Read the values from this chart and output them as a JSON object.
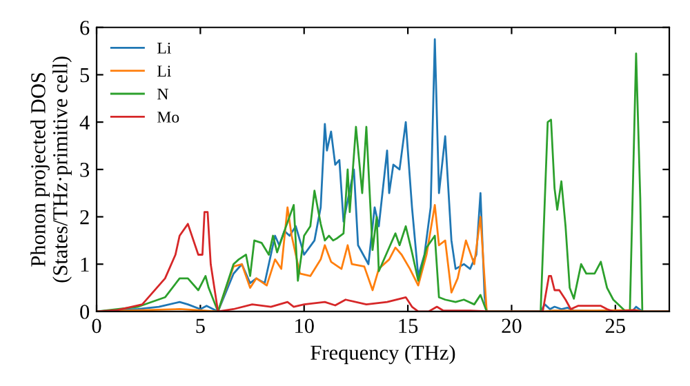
{
  "chart_data": {
    "type": "line",
    "xlabel": "Frequency (THz)",
    "ylabel": "Phonon projected DOS\n(States/THz·primitive cell)",
    "xlim": [
      0,
      27.6
    ],
    "ylim": [
      0,
      6
    ],
    "xticks": [
      0,
      5,
      10,
      15,
      20,
      25
    ],
    "yticks": [
      0,
      1,
      2,
      3,
      4,
      5,
      6
    ],
    "grid": false,
    "legend": "top left",
    "marker": "none",
    "line_style": "solid",
    "series": [
      {
        "name": "Li",
        "color": "#1f77b4",
        "x": [
          0,
          2,
          3,
          4.0,
          4.4,
          5.0,
          5.3,
          5.85,
          6.6,
          7.0,
          7.4,
          7.7,
          8.1,
          8.3,
          8.6,
          8.8,
          9.05,
          9.3,
          9.6,
          10.0,
          10.5,
          10.8,
          11.0,
          11.1,
          11.3,
          11.5,
          11.7,
          11.9,
          12.4,
          12.6,
          13.1,
          13.4,
          13.6,
          14.0,
          14.1,
          14.3,
          14.6,
          14.9,
          15.2,
          15.5,
          15.8,
          16.1,
          16.3,
          16.5,
          16.8,
          17.1,
          17.3,
          17.7,
          18.0,
          18.3,
          18.5,
          18.7,
          18.8,
          21.4,
          21.6,
          21.85,
          22.07,
          22.4,
          22.7,
          23.0,
          24.9,
          25.8,
          26.0,
          26.3,
          27.6
        ],
        "values": [
          0,
          0.05,
          0.1,
          0.2,
          0.15,
          0.05,
          0.12,
          0,
          0.8,
          1.0,
          0.6,
          0.7,
          0.6,
          1.0,
          1.6,
          1.4,
          1.7,
          1.6,
          1.8,
          1.2,
          1.5,
          2.2,
          3.96,
          3.4,
          3.8,
          3.1,
          3.2,
          1.9,
          3.0,
          1.4,
          1.0,
          2.2,
          1.8,
          3.4,
          2.5,
          3.1,
          3.0,
          4.0,
          2.2,
          0.75,
          1.2,
          2.2,
          5.75,
          2.5,
          3.7,
          1.5,
          0.9,
          1.0,
          0.9,
          1.2,
          2.5,
          0.3,
          0,
          0,
          0.15,
          0.05,
          0.1,
          0.05,
          0.08,
          0.02,
          0,
          0,
          0.1,
          0,
          0
        ]
      },
      {
        "name": "Li",
        "color": "#ff7f0e",
        "x": [
          0,
          4.0,
          5.85,
          6.6,
          7.0,
          7.4,
          7.7,
          8.2,
          8.6,
          8.9,
          9.2,
          9.4,
          9.8,
          10.3,
          10.8,
          11.0,
          11.3,
          11.8,
          12.1,
          12.3,
          12.9,
          13.3,
          13.6,
          14.1,
          14.4,
          14.7,
          15.1,
          15.5,
          15.9,
          16.3,
          16.5,
          16.8,
          17.1,
          17.4,
          17.8,
          18.2,
          18.5,
          18.8,
          21.5,
          22.0,
          24.0,
          26.0,
          26.3,
          27.6
        ],
        "values": [
          0,
          0.05,
          0,
          0.95,
          1.0,
          0.5,
          0.7,
          0.55,
          1.1,
          0.9,
          2.2,
          1.6,
          0.8,
          0.75,
          1.1,
          1.4,
          1.05,
          0.9,
          1.4,
          1.0,
          0.95,
          0.45,
          0.9,
          1.1,
          1.35,
          1.2,
          0.9,
          0.55,
          1.2,
          2.25,
          1.4,
          1.5,
          0.4,
          0.7,
          1.5,
          1.0,
          2.0,
          0,
          0,
          0.02,
          0.02,
          0.03,
          0,
          0
        ]
      },
      {
        "name": "N",
        "color": "#2ca02c",
        "x": [
          0,
          2,
          3.3,
          4.0,
          4.4,
          4.9,
          5.25,
          5.4,
          5.85,
          6.6,
          6.85,
          7.2,
          7.4,
          7.6,
          7.95,
          8.3,
          8.5,
          8.7,
          9.05,
          9.5,
          9.7,
          10.0,
          10.3,
          10.5,
          10.8,
          11.0,
          11.2,
          11.4,
          11.6,
          11.9,
          12.1,
          12.2,
          12.5,
          12.8,
          13.0,
          13.3,
          13.5,
          13.6,
          14.0,
          14.4,
          14.6,
          14.9,
          15.2,
          15.5,
          15.9,
          16.3,
          16.5,
          16.8,
          17.3,
          17.7,
          18.2,
          18.5,
          18.8,
          21.4,
          21.74,
          21.9,
          22.07,
          22.2,
          22.4,
          22.6,
          22.8,
          23.0,
          23.35,
          23.6,
          24.0,
          24.3,
          24.6,
          24.9,
          25.5,
          25.7,
          26.0,
          26.2,
          26.3,
          27.6
        ],
        "values": [
          0,
          0.1,
          0.3,
          0.7,
          0.7,
          0.45,
          0.75,
          0.5,
          0,
          1.0,
          1.1,
          1.2,
          0.75,
          1.5,
          1.45,
          1.2,
          1.6,
          1.25,
          1.7,
          2.25,
          0.65,
          1.6,
          1.8,
          2.55,
          1.85,
          1.5,
          1.6,
          1.5,
          1.55,
          1.65,
          3.0,
          2.1,
          3.9,
          2.5,
          3.9,
          1.3,
          2.0,
          0.85,
          1.25,
          1.65,
          1.4,
          1.8,
          1.25,
          0.65,
          1.35,
          1.6,
          0.3,
          0.25,
          0.2,
          0.25,
          0.15,
          0.35,
          0,
          0,
          4.0,
          4.05,
          2.6,
          2.15,
          2.75,
          1.8,
          0.5,
          0.27,
          1.0,
          0.8,
          0.8,
          1.05,
          0.5,
          0.25,
          0,
          0,
          5.45,
          2.4,
          0,
          0
        ]
      },
      {
        "name": "Mo",
        "color": "#d62728",
        "x": [
          0,
          1,
          2.2,
          3.3,
          3.8,
          4.0,
          4.4,
          4.9,
          5.1,
          5.2,
          5.35,
          5.5,
          5.85,
          6.6,
          7.5,
          8.4,
          9.2,
          9.5,
          10.0,
          11.0,
          11.5,
          12.0,
          13.0,
          14.0,
          14.9,
          15.2,
          15.5,
          16.0,
          16.4,
          16.7,
          18.0,
          19.0,
          21.5,
          21.8,
          21.9,
          22.07,
          22.3,
          22.6,
          22.85,
          23.2,
          23.6,
          24.3,
          24.6,
          24.9,
          25.9,
          26.2,
          27.6
        ],
        "values": [
          0,
          0.03,
          0.15,
          0.7,
          1.2,
          1.6,
          1.85,
          1.2,
          1.2,
          2.1,
          2.1,
          1.0,
          0,
          0.05,
          0.15,
          0.1,
          0.2,
          0.1,
          0.15,
          0.2,
          0.13,
          0.25,
          0.15,
          0.2,
          0.3,
          0.1,
          0,
          0,
          0.1,
          0.02,
          0.02,
          0,
          0,
          0.75,
          0.75,
          0.45,
          0.45,
          0.25,
          0.05,
          0.12,
          0.12,
          0.12,
          0.05,
          0,
          0.03,
          0,
          0
        ]
      }
    ]
  }
}
